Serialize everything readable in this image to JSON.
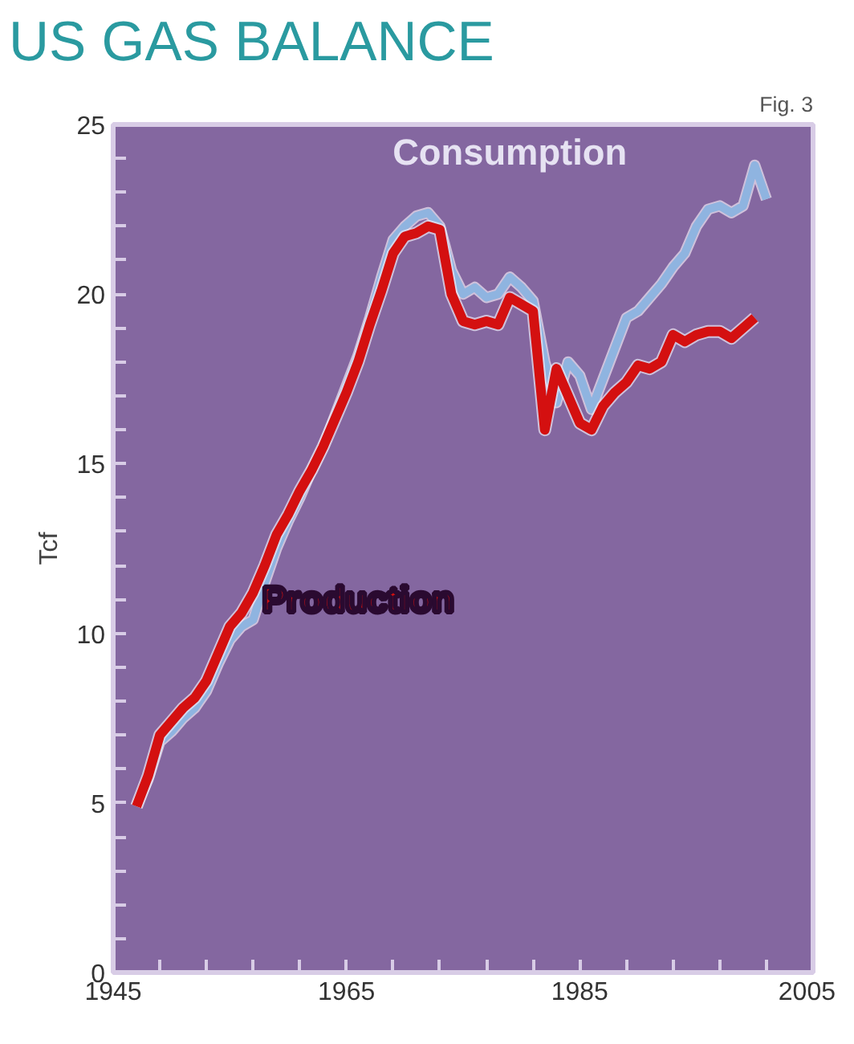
{
  "chart_data": {
    "type": "line",
    "title": "US GAS BALANCE",
    "ylabel": "Tcf",
    "annotations": [
      "Fig. 3"
    ],
    "xlim": [
      1945,
      2005
    ],
    "ylim": [
      0,
      25
    ],
    "xticks": [
      1945,
      {
        "value": 1949,
        "label": null
      },
      {
        "value": 1953,
        "label": null
      },
      {
        "value": 1957,
        "label": null
      },
      {
        "value": 1961,
        "label": null
      },
      1965,
      {
        "value": 1969,
        "label": null
      },
      {
        "value": 1973,
        "label": null
      },
      {
        "value": 1977,
        "label": null
      },
      {
        "value": 1981,
        "label": null
      },
      1985,
      {
        "value": 1989,
        "label": null
      },
      {
        "value": 1993,
        "label": null
      },
      {
        "value": 1997,
        "label": null
      },
      {
        "value": 2001,
        "label": null
      },
      2005
    ],
    "yticks": [
      0,
      {
        "value": 1,
        "label": null
      },
      {
        "value": 2,
        "label": null
      },
      {
        "value": 3,
        "label": null
      },
      {
        "value": 4,
        "label": null
      },
      5,
      {
        "value": 6,
        "label": null
      },
      {
        "value": 7,
        "label": null
      },
      {
        "value": 8,
        "label": null
      },
      {
        "value": 9,
        "label": null
      },
      10,
      {
        "value": 11,
        "label": null
      },
      {
        "value": 12,
        "label": null
      },
      {
        "value": 13,
        "label": null
      },
      {
        "value": 14,
        "label": null
      },
      15,
      {
        "value": 16,
        "label": null
      },
      {
        "value": 17,
        "label": null
      },
      {
        "value": 18,
        "label": null
      },
      {
        "value": 19,
        "label": null
      },
      20,
      {
        "value": 21,
        "label": null
      },
      {
        "value": 22,
        "label": null
      },
      {
        "value": 23,
        "label": null
      },
      {
        "value": 24,
        "label": null
      },
      25
    ],
    "grid": false,
    "marker": "none",
    "line_style": "solid",
    "series": [
      {
        "name": "Consumption",
        "color": "#8fb4e0",
        "x": [
          1947,
          1948,
          1949,
          1950,
          1951,
          1952,
          1953,
          1954,
          1955,
          1956,
          1957,
          1958,
          1959,
          1960,
          1961,
          1962,
          1963,
          1964,
          1965,
          1966,
          1967,
          1968,
          1969,
          1970,
          1971,
          1972,
          1973,
          1974,
          1975,
          1976,
          1977,
          1978,
          1979,
          1980,
          1981,
          1982,
          1983,
          1984,
          1985,
          1986,
          1987,
          1988,
          1989,
          1990,
          1991,
          1992,
          1993,
          1994,
          1995,
          1996,
          1997,
          1998,
          1999,
          2000,
          2001
        ],
        "values": [
          4.9,
          5.7,
          6.8,
          7.1,
          7.5,
          7.8,
          8.3,
          9.1,
          9.8,
          10.2,
          10.4,
          11.5,
          12.5,
          13.3,
          14.0,
          14.8,
          15.5,
          16.4,
          17.3,
          18.2,
          19.3,
          20.5,
          21.6,
          22.0,
          22.3,
          22.4,
          22.0,
          20.7,
          20.0,
          20.2,
          19.9,
          20.0,
          20.5,
          20.2,
          19.8,
          18.0,
          16.8,
          18.0,
          17.6,
          16.6,
          17.5,
          18.4,
          19.3,
          19.5,
          19.9,
          20.3,
          20.8,
          21.2,
          22.0,
          22.5,
          22.6,
          22.4,
          22.6,
          23.8,
          22.8
        ]
      },
      {
        "name": "Production",
        "color": "#d41010",
        "x": [
          1947,
          1948,
          1949,
          1950,
          1951,
          1952,
          1953,
          1954,
          1955,
          1956,
          1957,
          1958,
          1959,
          1960,
          1961,
          1962,
          1963,
          1964,
          1965,
          1966,
          1967,
          1968,
          1969,
          1970,
          1971,
          1972,
          1973,
          1974,
          1975,
          1976,
          1977,
          1978,
          1979,
          1980,
          1981,
          1982,
          1983,
          1984,
          1985,
          1986,
          1987,
          1988,
          1989,
          1990,
          1991,
          1992,
          1993,
          1994,
          1995,
          1996,
          1997,
          1998,
          1999,
          2000
        ],
        "values": [
          4.9,
          5.8,
          7.0,
          7.4,
          7.8,
          8.1,
          8.6,
          9.4,
          10.2,
          10.6,
          11.2,
          12.0,
          12.9,
          13.5,
          14.2,
          14.8,
          15.5,
          16.3,
          17.1,
          18.0,
          19.1,
          20.1,
          21.2,
          21.7,
          21.8,
          22.0,
          21.9,
          20.0,
          19.2,
          19.1,
          19.2,
          19.1,
          19.9,
          19.7,
          19.5,
          16.0,
          17.8,
          17.0,
          16.2,
          16.0,
          16.7,
          17.1,
          17.4,
          17.9,
          17.8,
          18.0,
          18.8,
          18.6,
          18.8,
          18.9,
          18.9,
          18.7,
          19.0,
          19.3
        ]
      }
    ]
  }
}
